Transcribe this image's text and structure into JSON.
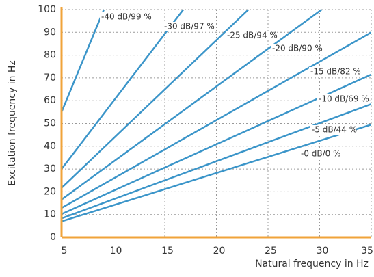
{
  "chart_data": {
    "type": "line",
    "x_label": "Natural frequency in Hz",
    "y_label": "Excitation frequency in Hz",
    "xlim": [
      5,
      35
    ],
    "xticks": [
      5,
      10,
      15,
      20,
      25,
      30,
      35
    ],
    "ylim": [
      0,
      100
    ],
    "yticks": [
      0,
      10,
      20,
      30,
      40,
      50,
      60,
      70,
      80,
      90,
      100
    ],
    "grid": true,
    "axis_color": "#f0a33a",
    "series": [
      {
        "name": "-0 dB/0 %",
        "color": "#3b95c9",
        "x": [
          5,
          35
        ],
        "values": [
          7,
          49.5
        ]
      },
      {
        "name": "-5 dB/44 %",
        "color": "#3b95c9",
        "x": [
          5,
          35
        ],
        "values": [
          8.3,
          58.5
        ]
      },
      {
        "name": "-10 dB/69 %",
        "color": "#3b95c9",
        "x": [
          5,
          35
        ],
        "values": [
          10.2,
          71.5
        ]
      },
      {
        "name": "-15 dB/82 %",
        "color": "#3b95c9",
        "x": [
          5,
          35
        ],
        "values": [
          12.9,
          90
        ]
      },
      {
        "name": "-20 dB/90 %",
        "color": "#3b95c9",
        "x": [
          5,
          30.2
        ],
        "values": [
          16.6,
          100
        ]
      },
      {
        "name": "-25 dB/94 %",
        "color": "#3b95c9",
        "x": [
          5,
          23.1
        ],
        "values": [
          21.7,
          100
        ]
      },
      {
        "name": "-30 dB/97 %",
        "color": "#3b95c9",
        "x": [
          5,
          16.8
        ],
        "values": [
          30,
          100
        ]
      },
      {
        "name": "-40 dB/99 %",
        "color": "#3b95c9",
        "x": [
          5,
          9.1
        ],
        "values": [
          55,
          100
        ]
      }
    ]
  }
}
